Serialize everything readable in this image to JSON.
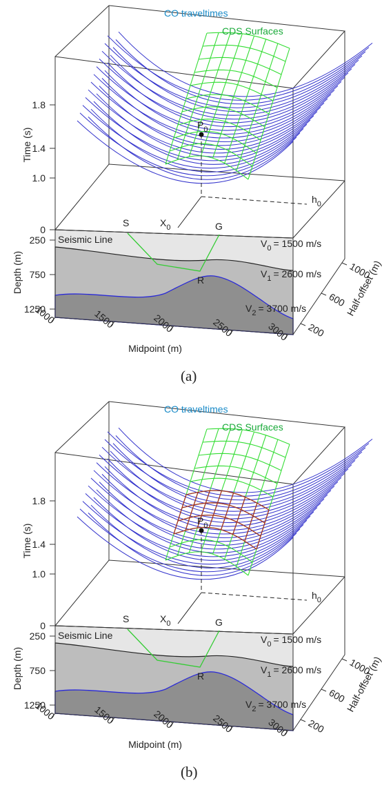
{
  "panels": [
    {
      "caption": "(a)",
      "labels": {
        "co_traveltimes": "CO traveltimes",
        "cds_surfaces": "CDS Surfaces",
        "time_axis": "Time (s)",
        "time_ticks": [
          "1.8",
          "1.4",
          "1.0",
          "0"
        ],
        "depth_axis": "Depth (m)",
        "depth_ticks": [
          "250",
          "750",
          "1250"
        ],
        "seismic_line": "Seismic Line",
        "source": "S",
        "midpoint_x": {
          "main": "X",
          "sub": "0"
        },
        "receiver": "G",
        "point": {
          "main": "P",
          "sub": "0"
        },
        "reflection": "R",
        "half_offset_h": {
          "main": "h",
          "sub": "0"
        },
        "velocities": [
          {
            "main": "V",
            "sub": "0",
            "rest": "= 1500 m/s"
          },
          {
            "main": "V",
            "sub": "1",
            "rest": "= 2600 m/s"
          },
          {
            "main": "V",
            "sub": "2",
            "rest": "= 3700 m/s"
          }
        ],
        "midpoint_ticks": [
          "1000",
          "1500",
          "2000",
          "2500",
          "3000"
        ],
        "midpoint_axis": "Midpoint (m)",
        "half_offset_ticks": [
          "200",
          "600",
          "1000"
        ],
        "half_offset_axis": "Half-offset (m)"
      }
    },
    {
      "caption": "(b)",
      "labels": {
        "co_traveltimes": "CO traveltimes",
        "cds_surfaces": "CDS Surfaces",
        "time_axis": "Time (s)",
        "time_ticks": [
          "1.8",
          "1.4",
          "1.0",
          "0"
        ],
        "depth_axis": "Depth (m)",
        "depth_ticks": [
          "250",
          "750",
          "1250"
        ],
        "seismic_line": "Seismic Line",
        "source": "S",
        "midpoint_x": {
          "main": "X",
          "sub": "0"
        },
        "receiver": "G",
        "point": {
          "main": "P",
          "sub": "0"
        },
        "reflection": "R",
        "half_offset_h": {
          "main": "h",
          "sub": "0"
        },
        "velocities": [
          {
            "main": "V",
            "sub": "0",
            "rest": "= 1500 m/s"
          },
          {
            "main": "V",
            "sub": "1",
            "rest": "= 2600 m/s"
          },
          {
            "main": "V",
            "sub": "2",
            "rest": "= 3700 m/s"
          }
        ],
        "midpoint_ticks": [
          "1000",
          "1500",
          "2000",
          "2500",
          "3000"
        ],
        "midpoint_axis": "Midpoint (m)",
        "half_offset_ticks": [
          "200",
          "600",
          "1000"
        ],
        "half_offset_axis": "Half-offset (m)"
      }
    }
  ]
}
